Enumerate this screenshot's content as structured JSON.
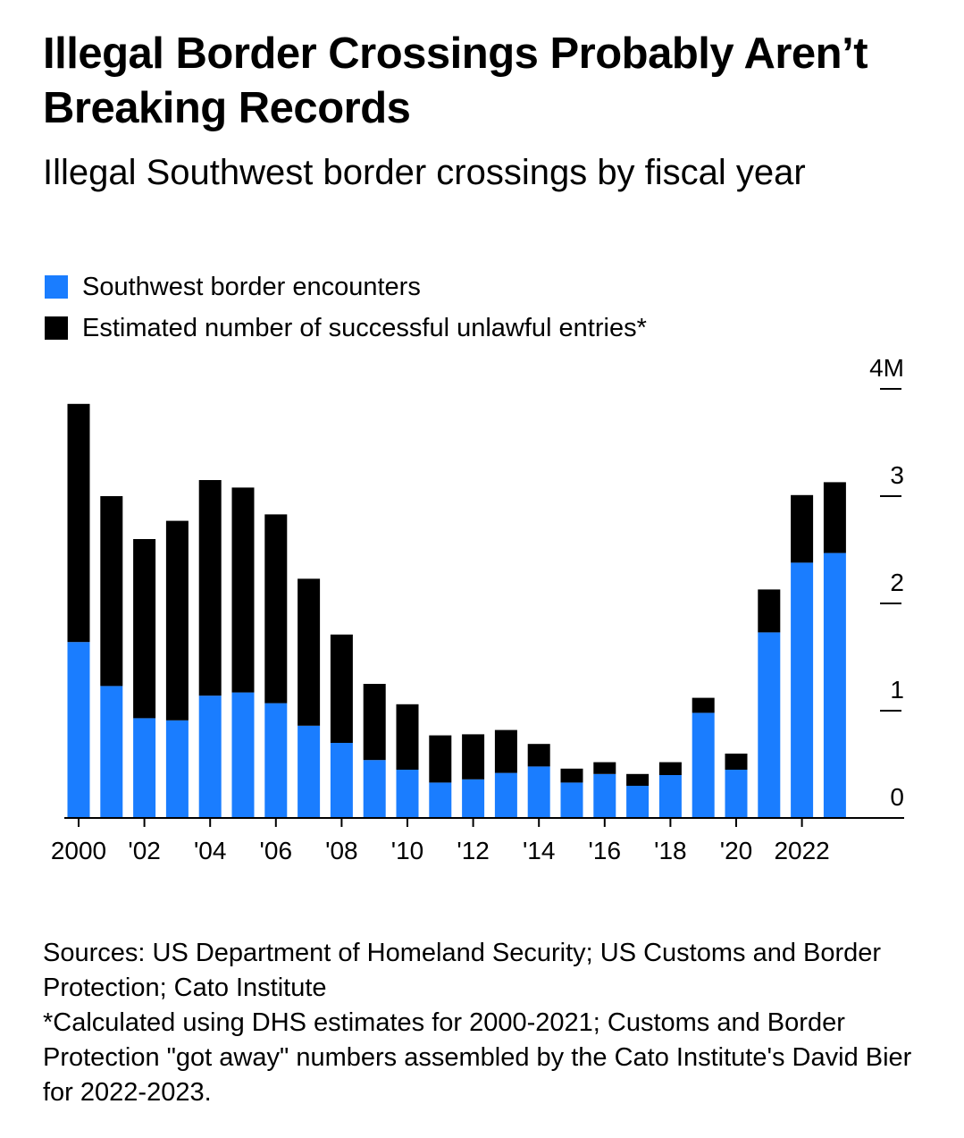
{
  "header": {
    "title": "Illegal Border Crossings Probably Aren’t Breaking Records",
    "subtitle": "Illegal Southwest border crossings by fiscal year"
  },
  "legend": {
    "items": [
      {
        "label": "Southwest border encounters",
        "color": "#1a7dff"
      },
      {
        "label": "Estimated number of successful unlawful entries*",
        "color": "#000000"
      }
    ]
  },
  "chart_data": {
    "type": "bar",
    "stacked": true,
    "title": "Illegal Border Crossings Probably Aren’t Breaking Records",
    "subtitle": "Illegal Southwest border crossings by fiscal year",
    "unit": "M",
    "x": [
      2000,
      2001,
      2002,
      2003,
      2004,
      2005,
      2006,
      2007,
      2008,
      2009,
      2010,
      2011,
      2012,
      2013,
      2014,
      2015,
      2016,
      2017,
      2018,
      2019,
      2020,
      2021,
      2022,
      2023
    ],
    "x_tick_labels": [
      {
        "year": 2000,
        "label": "2000"
      },
      {
        "year": 2002,
        "label": "'02"
      },
      {
        "year": 2004,
        "label": "'04"
      },
      {
        "year": 2006,
        "label": "'06"
      },
      {
        "year": 2008,
        "label": "'08"
      },
      {
        "year": 2010,
        "label": "'10"
      },
      {
        "year": 2012,
        "label": "'12"
      },
      {
        "year": 2014,
        "label": "'14"
      },
      {
        "year": 2016,
        "label": "'16"
      },
      {
        "year": 2018,
        "label": "'18"
      },
      {
        "year": 2020,
        "label": "'20"
      },
      {
        "year": 2022,
        "label": "2022"
      }
    ],
    "y_ticks": [
      {
        "value": 0,
        "label": "0"
      },
      {
        "value": 1,
        "label": "1"
      },
      {
        "value": 2,
        "label": "2"
      },
      {
        "value": 3,
        "label": "3"
      },
      {
        "value": 4,
        "label": "4M"
      }
    ],
    "ylim": [
      0,
      4
    ],
    "y_axis_position": "right",
    "legend_position": "top-left",
    "grid": false,
    "series": [
      {
        "name": "Southwest border encounters",
        "color": "#1a7dff",
        "values": [
          1.64,
          1.23,
          0.93,
          0.91,
          1.14,
          1.17,
          1.07,
          0.86,
          0.7,
          0.54,
          0.45,
          0.33,
          0.36,
          0.42,
          0.48,
          0.33,
          0.41,
          0.3,
          0.4,
          0.98,
          0.45,
          1.73,
          2.38,
          2.47
        ]
      },
      {
        "name": "Estimated number of successful unlawful entries*",
        "color": "#000000",
        "values": [
          2.22,
          1.77,
          1.67,
          1.86,
          2.01,
          1.91,
          1.76,
          1.37,
          1.01,
          0.71,
          0.61,
          0.44,
          0.42,
          0.4,
          0.21,
          0.13,
          0.11,
          0.11,
          0.12,
          0.14,
          0.15,
          0.4,
          0.63,
          0.66
        ]
      }
    ]
  },
  "footnote": {
    "sources": "Sources: US Department of Homeland Security; US Customs and Border Protection; Cato Institute",
    "note": "*Calculated using DHS estimates for 2000-2021; Customs and Border Protection \"got away\" numbers assembled by the Cato Institute's David Bier for 2022-2023."
  }
}
